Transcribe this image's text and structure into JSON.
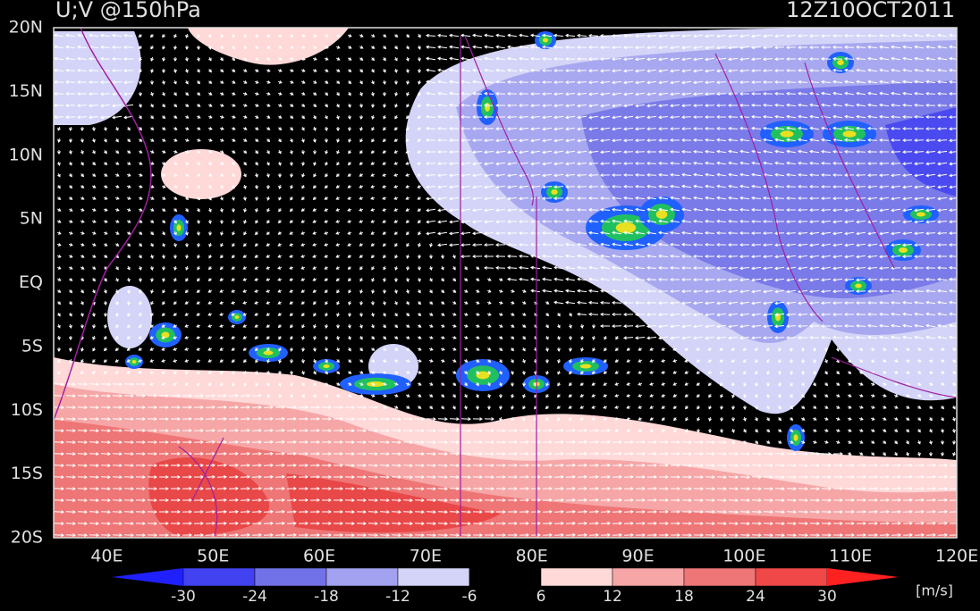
{
  "header": {
    "title": "U;V @150hPa",
    "date": "12Z10OCT2011"
  },
  "map": {
    "lat_labels": [
      "20N",
      "15N",
      "10N",
      "5N",
      "EQ",
      "5S",
      "10S",
      "15S",
      "20S"
    ],
    "lon_labels": [
      "40E",
      "50E",
      "60E",
      "70E",
      "80E",
      "90E",
      "100E",
      "110E",
      "120E"
    ]
  },
  "colorbar": {
    "labels": [
      "-30",
      "-24",
      "-18",
      "-12",
      "-6",
      "6",
      "12",
      "18",
      "24",
      "30"
    ],
    "unit": "[m/s]"
  }
}
